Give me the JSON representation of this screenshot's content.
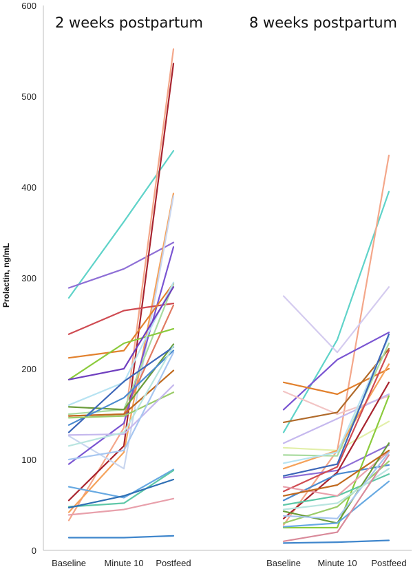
{
  "chart_data": {
    "type": "line",
    "ylabel": "Prolactin, ng/mL",
    "ylim": [
      0,
      600
    ],
    "yticks": [
      0,
      100,
      200,
      300,
      400,
      500,
      600
    ],
    "categories": [
      "Baseline",
      "Minute 10",
      "Postfeed"
    ],
    "grid": false,
    "panels": [
      {
        "title": "2 weeks postpartum",
        "series": [
          {
            "color": "#5fd3c9",
            "values": [
              278,
              362,
              440
            ]
          },
          {
            "color": "#8e6fd6",
            "values": [
              289,
              310,
              339
            ]
          },
          {
            "color": "#f4a78a",
            "values": [
              33,
              135,
              552
            ]
          },
          {
            "color": "#a8242f",
            "values": [
              55,
              115,
              536
            ]
          },
          {
            "color": "#f5a25a",
            "values": [
              42,
              108,
              393
            ]
          },
          {
            "color": "#c9d6ef",
            "values": [
              126,
              90,
              390
            ]
          },
          {
            "color": "#cf4b52",
            "values": [
              238,
              264,
              272
            ]
          },
          {
            "color": "#e07a62",
            "values": [
              148,
              150,
              270
            ]
          },
          {
            "color": "#7a55d2",
            "values": [
              95,
              140,
              334
            ]
          },
          {
            "color": "#a9dba0",
            "values": [
              150,
              155,
              293
            ]
          },
          {
            "color": "#e2812e",
            "values": [
              212,
              220,
              294
            ]
          },
          {
            "color": "#8bcb3c",
            "values": [
              188,
              228,
              244
            ]
          },
          {
            "color": "#b7e3f2",
            "values": [
              160,
              185,
              295
            ]
          },
          {
            "color": "#6a9c3a",
            "values": [
              158,
              155,
              227
            ]
          },
          {
            "color": "#c06a1f",
            "values": [
              148,
              150,
              198
            ]
          },
          {
            "color": "#4b8bd0",
            "values": [
              138,
              168,
              220
            ]
          },
          {
            "color": "#3c66b8",
            "values": [
              130,
              186,
              224
            ]
          },
          {
            "color": "#9bcc6a",
            "values": [
              146,
              148,
              174
            ]
          },
          {
            "color": "#6f3fbf",
            "values": [
              188,
              200,
              290
            ]
          },
          {
            "color": "#c5b8ee",
            "values": [
              127,
              128,
              182
            ]
          },
          {
            "color": "#a7c6f0",
            "values": [
              100,
              110,
              218
            ]
          },
          {
            "color": "#b9e5e0",
            "values": [
              115,
              130,
              225
            ]
          },
          {
            "color": "#67a9e2",
            "values": [
              70,
              58,
              89
            ]
          },
          {
            "color": "#5ec7a7",
            "values": [
              48,
              52,
              88
            ]
          },
          {
            "color": "#2f6fb4",
            "values": [
              47,
              60,
              78
            ]
          },
          {
            "color": "#e8a0ab",
            "values": [
              39,
              45,
              57
            ]
          },
          {
            "color": "#3f86cc",
            "values": [
              14,
              14,
              16
            ]
          }
        ]
      },
      {
        "title": "8 weeks postpartum",
        "series": [
          {
            "color": "#5fd3c9",
            "values": [
              130,
              232,
              395
            ]
          },
          {
            "color": "#f4a78a",
            "values": [
              28,
              110,
              435
            ]
          },
          {
            "color": "#d4cbef",
            "values": [
              280,
              218,
              290
            ]
          },
          {
            "color": "#7a55d2",
            "values": [
              155,
              210,
              240
            ]
          },
          {
            "color": "#e2812e",
            "values": [
              185,
              172,
              200
            ]
          },
          {
            "color": "#f2c4c4",
            "values": [
              175,
              150,
              170
            ]
          },
          {
            "color": "#b06a2a",
            "values": [
              141,
              152,
              222
            ]
          },
          {
            "color": "#c5b8ee",
            "values": [
              118,
              145,
              172
            ]
          },
          {
            "color": "#e2efa9",
            "values": [
              113,
              110,
              142
            ]
          },
          {
            "color": "#a9dba0",
            "values": [
              105,
              104,
              228
            ]
          },
          {
            "color": "#f5a25a",
            "values": [
              90,
              110,
              205
            ]
          },
          {
            "color": "#b7e3f2",
            "values": [
              96,
              108,
              235
            ]
          },
          {
            "color": "#8e6fd6",
            "values": [
              80,
              88,
              116
            ]
          },
          {
            "color": "#cf4b52",
            "values": [
              65,
              92,
              220
            ]
          },
          {
            "color": "#a8242f",
            "values": [
              35,
              86,
              185
            ]
          },
          {
            "color": "#3c66b8",
            "values": [
              82,
              95,
              238
            ]
          },
          {
            "color": "#8bcb3c",
            "values": [
              25,
              25,
              170
            ]
          },
          {
            "color": "#5ec7a7",
            "values": [
              50,
              60,
              84
            ]
          },
          {
            "color": "#4b8bd0",
            "values": [
              55,
              84,
              94
            ]
          },
          {
            "color": "#e8a0ab",
            "values": [
              70,
              60,
              109
            ]
          },
          {
            "color": "#9bcc6a",
            "values": [
              30,
              48,
              98
            ]
          },
          {
            "color": "#6a9c3a",
            "values": [
              43,
              30,
              118
            ]
          },
          {
            "color": "#a7c6f0",
            "values": [
              38,
              35,
              108
            ]
          },
          {
            "color": "#67a9e2",
            "values": [
              26,
              30,
              76
            ]
          },
          {
            "color": "#b9e5e0",
            "values": [
              45,
              52,
              90
            ]
          },
          {
            "color": "#c06a1f",
            "values": [
              60,
              72,
              110
            ]
          },
          {
            "color": "#d98a9a",
            "values": [
              10,
              20,
              105
            ]
          },
          {
            "color": "#3f86cc",
            "values": [
              8,
              9,
              11
            ]
          }
        ]
      }
    ]
  }
}
